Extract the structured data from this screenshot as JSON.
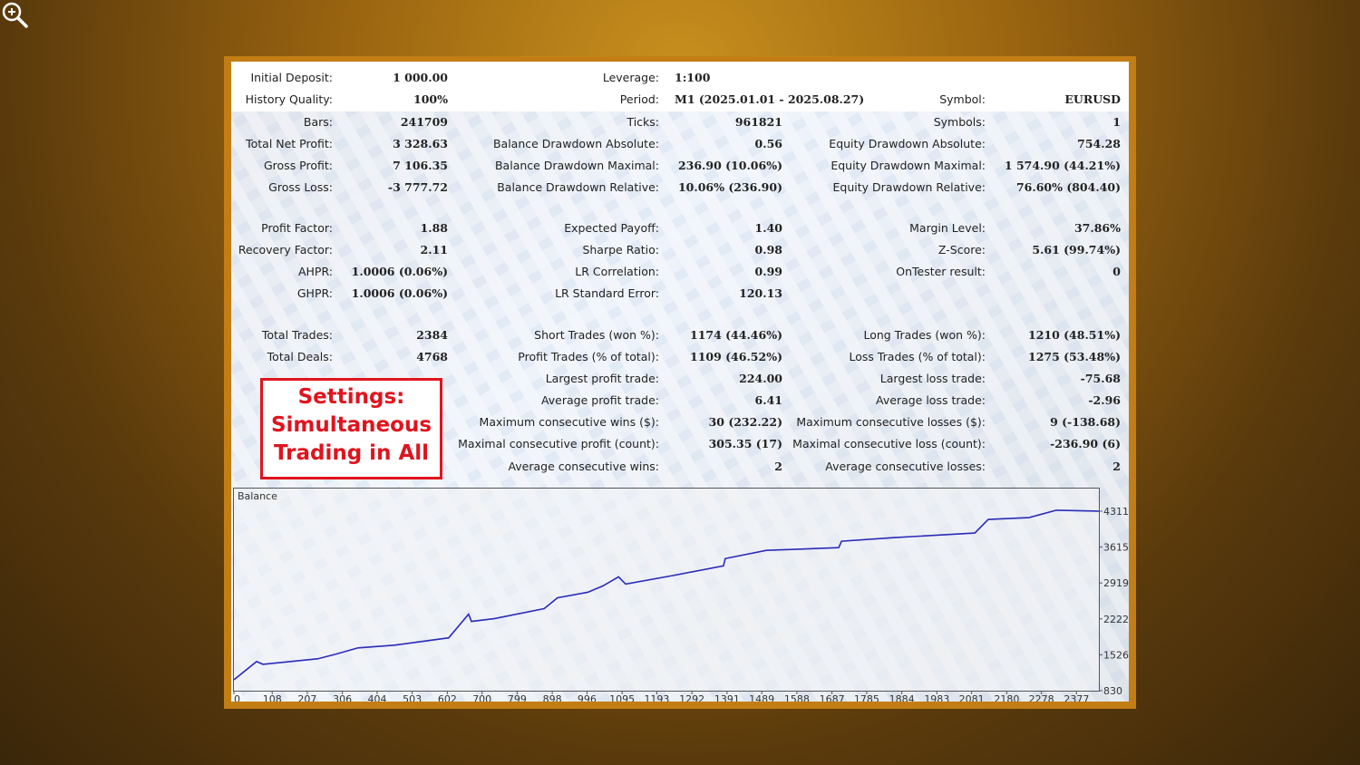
{
  "header": {
    "initial_deposit": {
      "label": "Initial Deposit:",
      "value": "1 000.00"
    },
    "history_quality": {
      "label": "History Quality:",
      "value": "100%"
    },
    "leverage": {
      "label": "Leverage:",
      "value": "1:100"
    },
    "period": {
      "label": "Period:",
      "value": "M1 (2025.01.01 - 2025.08.27)"
    },
    "symbol": {
      "label": "Symbol:",
      "value": "EURUSD"
    }
  },
  "rows": [
    [
      [
        "Bars:",
        "241709"
      ],
      [
        "Ticks:",
        "961821"
      ],
      [
        "Symbols:",
        "1"
      ]
    ],
    [
      [
        "Total Net Profit:",
        "3 328.63"
      ],
      [
        "Balance Drawdown Absolute:",
        "0.56"
      ],
      [
        "Equity Drawdown Absolute:",
        "754.28"
      ]
    ],
    [
      [
        "Gross Profit:",
        "7 106.35"
      ],
      [
        "Balance Drawdown Maximal:",
        "236.90 (10.06%)"
      ],
      [
        "Equity Drawdown Maximal:",
        "1 574.90 (44.21%)"
      ]
    ],
    [
      [
        "Gross Loss:",
        "-3 777.72"
      ],
      [
        "Balance Drawdown Relative:",
        "10.06% (236.90)"
      ],
      [
        "Equity Drawdown Relative:",
        "76.60% (804.40)"
      ]
    ],
    [
      [
        "Profit Factor:",
        "1.88"
      ],
      [
        "Expected Payoff:",
        "1.40"
      ],
      [
        "Margin Level:",
        "37.86%"
      ]
    ],
    [
      [
        "Recovery Factor:",
        "2.11"
      ],
      [
        "Sharpe Ratio:",
        "0.98"
      ],
      [
        "Z-Score:",
        "5.61 (99.74%)"
      ]
    ],
    [
      [
        "AHPR:",
        "1.0006 (0.06%)"
      ],
      [
        "LR Correlation:",
        "0.99"
      ],
      [
        "OnTester result:",
        "0"
      ]
    ],
    [
      [
        "GHPR:",
        "1.0006 (0.06%)"
      ],
      [
        "LR Standard Error:",
        "120.13"
      ],
      [
        "",
        ""
      ]
    ],
    [
      [
        "Total Trades:",
        "2384"
      ],
      [
        "Short Trades (won %):",
        "1174 (44.46%)"
      ],
      [
        "Long Trades (won %):",
        "1210 (48.51%)"
      ]
    ],
    [
      [
        "Total Deals:",
        "4768"
      ],
      [
        "Profit Trades (% of total):",
        "1109 (46.52%)"
      ],
      [
        "Loss Trades (% of total):",
        "1275 (53.48%)"
      ]
    ],
    [
      [
        "",
        ""
      ],
      [
        "Largest profit trade:",
        "224.00"
      ],
      [
        "Largest loss trade:",
        "-75.68"
      ]
    ],
    [
      [
        "",
        ""
      ],
      [
        "Average profit trade:",
        "6.41"
      ],
      [
        "Average loss trade:",
        "-2.96"
      ]
    ],
    [
      [
        "",
        ""
      ],
      [
        "Maximum consecutive wins ($):",
        "30 (232.22)"
      ],
      [
        "Maximum consecutive losses ($):",
        "9 (-138.68)"
      ]
    ],
    [
      [
        "",
        ""
      ],
      [
        "Maximal consecutive profit (count):",
        "305.35 (17)"
      ],
      [
        "Maximal consecutive loss (count):",
        "-236.90 (6)"
      ]
    ],
    [
      [
        "",
        ""
      ],
      [
        "Average consecutive wins:",
        "2"
      ],
      [
        "Average consecutive losses:",
        "2"
      ]
    ]
  ],
  "settings_box": {
    "line1": "Settings:",
    "line2": "Simultaneous",
    "line3": "Trading in All"
  },
  "colors": {
    "frame": "#c27e14",
    "settings": "#e0141e",
    "line": "#2b2bb8"
  },
  "zoom_icon": "zoom-in-icon",
  "chart_data": {
    "type": "line",
    "title": "Balance",
    "xlim": [
      0,
      2440
    ],
    "ylim": [
      830,
      4750
    ],
    "x_ticks": [
      "0",
      "108",
      "207",
      "306",
      "404",
      "503",
      "602",
      "700",
      "799",
      "898",
      "996",
      "1095",
      "1193",
      "1292",
      "1391",
      "1489",
      "1588",
      "1687",
      "1785",
      "1884",
      "1983",
      "2081",
      "2180",
      "2278",
      "2377"
    ],
    "y_ticks": [
      "830",
      "1526",
      "2222",
      "2919",
      "3615",
      "4311"
    ],
    "grid": false,
    "series": [
      {
        "x": [
          0,
          64,
          82,
          236,
          287,
          350,
          453,
          606,
          662,
          670,
          734,
          875,
          913,
          998,
          1041,
          1085,
          1105,
          1233,
          1381,
          1386,
          1502,
          1706,
          1714,
          1860,
          2090,
          2128,
          2243,
          2320,
          2440
        ],
        "y": [
          1042,
          1395,
          1342,
          1448,
          1537,
          1660,
          1713,
          1855,
          2314,
          2173,
          2226,
          2420,
          2632,
          2738,
          2862,
          3038,
          2897,
          3056,
          3250,
          3392,
          3551,
          3604,
          3728,
          3798,
          3887,
          4151,
          4187,
          4330,
          4311
        ]
      }
    ]
  }
}
